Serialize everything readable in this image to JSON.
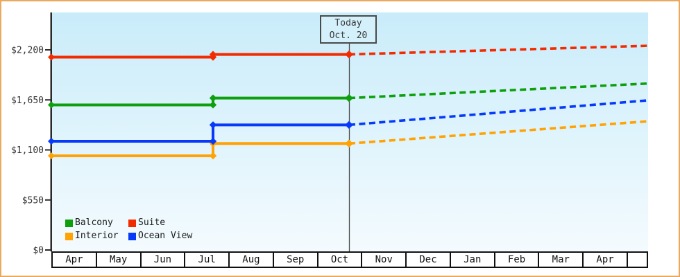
{
  "window": {
    "frame_border_color": "#eba95e",
    "plot_bg_top_color": "#c9ecfa",
    "plot_bg_bottom_color": "#f4fbfe"
  },
  "today_box": {
    "line1": "Today",
    "line2": "Oct. 20"
  },
  "chart_data": {
    "type": "line",
    "title": "",
    "xlabel": "",
    "ylabel": "",
    "grid": false,
    "legend_position": "bottom-left",
    "y_axis": {
      "tick_labels": [
        "$0",
        "$550",
        "$1,100",
        "$1,650",
        "$2,200"
      ],
      "tick_values": [
        0,
        550,
        1100,
        1650,
        2200
      ],
      "ylim": [
        0,
        2595
      ]
    },
    "x_axis": {
      "months": [
        "Apr",
        "May",
        "Jun",
        "Jul",
        "Aug",
        "Sep",
        "Oct",
        "Nov",
        "Dec",
        "Jan",
        "Feb",
        "Mar",
        "Apr"
      ]
    },
    "today_marker": {
      "label_line1": "Today",
      "label_line2": "Oct. 20",
      "month": "Oct",
      "day": 20
    },
    "series": [
      {
        "name": "Interior",
        "color": "#ffa203",
        "initial_value": 1035,
        "step_month": "Jul",
        "step_value": 1170,
        "today_value": 1170,
        "projected_end_value": 1415,
        "projection_style": "dashed"
      },
      {
        "name": "Ocean View",
        "color": "#0639fa",
        "initial_value": 1195,
        "step_month": "Jul",
        "step_value": 1375,
        "today_value": 1375,
        "projected_end_value": 1645,
        "projection_style": "dashed"
      },
      {
        "name": "Balcony",
        "color": "#0da00c",
        "initial_value": 1595,
        "step_month": "Jul",
        "step_value": 1670,
        "today_value": 1670,
        "projected_end_value": 1830,
        "projection_style": "dashed"
      },
      {
        "name": "Suite",
        "color": "#f32b00",
        "initial_value": 2120,
        "step_month": "Jul",
        "step_value": 2150,
        "today_value": 2150,
        "projected_end_value": 2245,
        "projection_style": "dashed"
      }
    ],
    "legend_order": [
      "Balcony",
      "Suite",
      "Interior",
      "Ocean View"
    ]
  }
}
